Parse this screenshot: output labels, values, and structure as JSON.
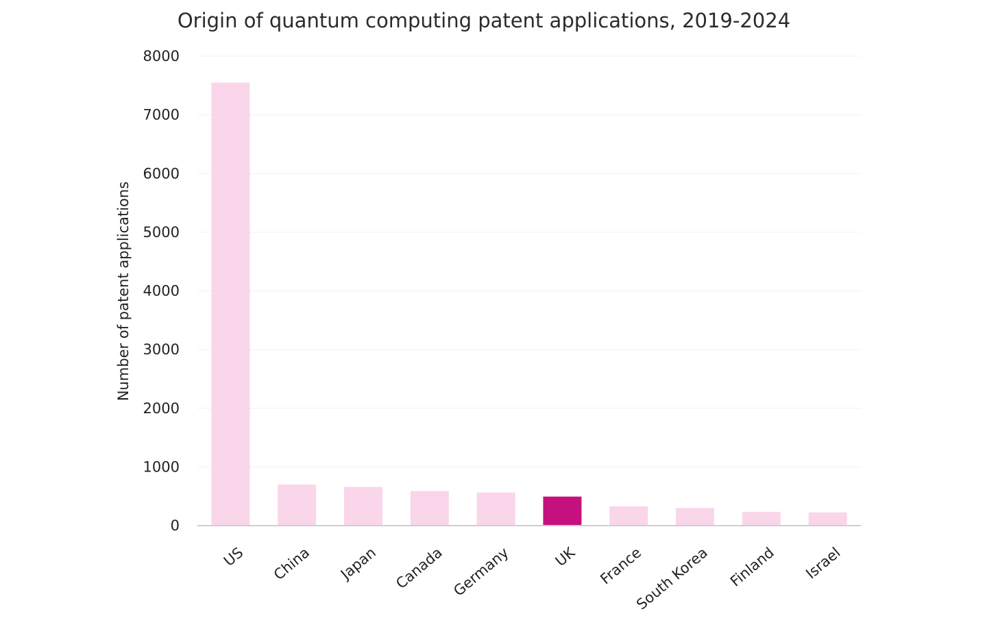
{
  "chart_data": {
    "type": "bar",
    "title": "Origin of quantum computing patent applications, 2019-2024",
    "xlabel": "",
    "ylabel": "Number of patent applications",
    "categories": [
      "US",
      "China",
      "Japan",
      "Canada",
      "Germany",
      "UK",
      "France",
      "South Korea",
      "Finland",
      "Israel"
    ],
    "values": [
      7550,
      700,
      660,
      590,
      565,
      495,
      330,
      300,
      235,
      225
    ],
    "ylim": [
      0,
      8000
    ],
    "yticks": [
      0,
      1000,
      2000,
      3000,
      4000,
      5000,
      6000,
      7000,
      8000
    ],
    "grid": true,
    "highlight_category": "UK",
    "colors": {
      "bar": "#fad6ea",
      "highlight": "#c5117e"
    }
  }
}
